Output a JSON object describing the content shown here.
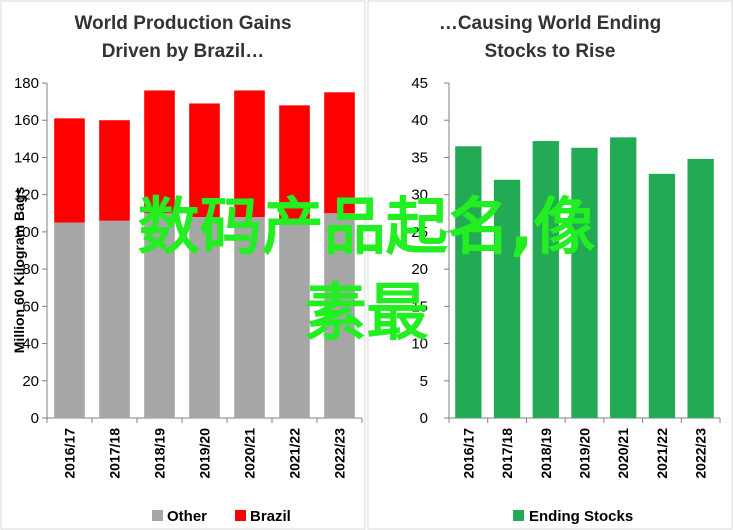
{
  "overlay": {
    "line1": "数码产品起名,像",
    "line2": "素最"
  },
  "chart_data": [
    {
      "type": "bar",
      "stacked": true,
      "title": [
        "World Production Gains",
        "Driven by Brazil…"
      ],
      "ylabel": "Million 60 Kilogram Bags",
      "ylim": [
        0,
        180
      ],
      "yticks": [
        0,
        20,
        40,
        60,
        80,
        100,
        120,
        140,
        160,
        180
      ],
      "categories": [
        "2016/17",
        "2017/18",
        "2018/19",
        "2019/20",
        "2020/21",
        "2021/22",
        "2022/23"
      ],
      "series": [
        {
          "name": "Other",
          "color": "#a6a6a6",
          "values": [
            105,
            106,
            110,
            108,
            108,
            107,
            110
          ]
        },
        {
          "name": "Brazil",
          "color": "#ff0000",
          "values": [
            56,
            54,
            66,
            61,
            68,
            61,
            65
          ]
        }
      ],
      "legend_position": "bottom",
      "grid": false
    },
    {
      "type": "bar",
      "title": [
        "…Causing World Ending",
        "Stocks to Rise"
      ],
      "ylabel": "",
      "ylim": [
        0,
        45
      ],
      "yticks": [
        0,
        5,
        10,
        15,
        20,
        25,
        30,
        35,
        40,
        45
      ],
      "categories": [
        "2016/17",
        "2017/18",
        "2018/19",
        "2019/20",
        "2020/21",
        "2021/22",
        "2022/23"
      ],
      "series": [
        {
          "name": "Ending Stocks",
          "color": "#22aa55",
          "values": [
            36.5,
            32,
            37.2,
            36.3,
            37.7,
            32.8,
            34.8
          ]
        }
      ],
      "legend_position": "bottom",
      "grid": false
    }
  ]
}
